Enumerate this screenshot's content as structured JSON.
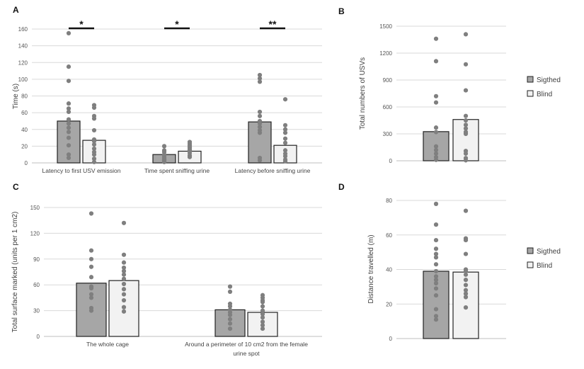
{
  "chart_data": [
    {
      "panel": "A",
      "type": "bar",
      "ylabel": "Time (s)",
      "ylim": [
        0,
        160
      ],
      "yticks": [
        0,
        20,
        40,
        60,
        80,
        100,
        120,
        140,
        160
      ],
      "grid": true,
      "categories": [
        "Latency to first USV emission",
        "Time spent sniffing urine",
        "Latency before sniffing urine"
      ],
      "series": [
        {
          "name": "Sigthed",
          "color": "#a6a6a6",
          "values": [
            50,
            10,
            49
          ],
          "points": [
            [
              155,
              115,
              98,
              71,
              65,
              61,
              52,
              47,
              42,
              37,
              30,
              21,
              10,
              6
            ],
            [
              20,
              15,
              13,
              10,
              8,
              6,
              5,
              4,
              3,
              2,
              1
            ],
            [
              105,
              101,
              97,
              61,
              56,
              50,
              47,
              43,
              39,
              36,
              6,
              3
            ]
          ]
        },
        {
          "name": "Blind",
          "color": "#f2f2f2",
          "values": [
            27,
            14,
            21
          ],
          "points": [
            [
              69,
              66,
              56,
              53,
              39,
              28,
              26,
              22,
              17,
              13,
              10,
              5,
              1
            ],
            [
              25,
              23,
              21,
              19,
              18,
              16,
              15,
              12,
              9,
              7
            ],
            [
              76,
              45,
              40,
              36,
              29,
              24,
              15,
              11,
              8,
              4,
              2
            ]
          ]
        }
      ],
      "significance": [
        "*",
        "*",
        "**"
      ]
    },
    {
      "panel": "B",
      "type": "bar",
      "ylabel": "Total numbers of USVs",
      "ylim": [
        0,
        1500
      ],
      "yticks": [
        0,
        300,
        600,
        900,
        1200,
        1500
      ],
      "grid": true,
      "categories": [
        ""
      ],
      "series": [
        {
          "name": "Sigthed",
          "color": "#a6a6a6",
          "values": [
            325
          ],
          "points": [
            [
              1360,
              1110,
              720,
              650,
              370,
              320,
              160,
              120,
              80,
              40,
              10
            ]
          ]
        },
        {
          "name": "Blind",
          "color": "#f2f2f2",
          "values": [
            460
          ],
          "points": [
            [
              1410,
              1075,
              785,
              500,
              450,
              400,
              360,
              320,
              300,
              110,
              80,
              30,
              5
            ]
          ]
        }
      ],
      "legend": [
        "Sigthed",
        "Blind"
      ]
    },
    {
      "panel": "C",
      "type": "bar",
      "ylabel": "Total surface marked (units per 1 cm2)",
      "ylim": [
        0,
        150
      ],
      "yticks": [
        0,
        30,
        60,
        90,
        120,
        150
      ],
      "grid": true,
      "categories": [
        "The whole cage",
        "Around a perimeter of 10 cm2 from the female urine spot"
      ],
      "series": [
        {
          "name": "Sigthed",
          "color": "#a6a6a6",
          "values": [
            62,
            31
          ],
          "points": [
            [
              143,
              100,
              90,
              81,
              69,
              58,
              56,
              49,
              45,
              33,
              30
            ],
            [
              58,
              52,
              38,
              35,
              31,
              28,
              25,
              20,
              15,
              9
            ]
          ]
        },
        {
          "name": "Blind",
          "color": "#f2f2f2",
          "values": [
            65,
            28
          ],
          "points": [
            [
              132,
              95,
              86,
              80,
              76,
              72,
              67,
              61,
              55,
              49,
              42,
              34,
              29
            ],
            [
              48,
              45,
              42,
              40,
              35,
              30,
              26,
              22,
              17,
              13,
              9
            ]
          ]
        }
      ]
    },
    {
      "panel": "D",
      "type": "bar",
      "ylabel": "Distance travelled (m)",
      "ylim": [
        0,
        80
      ],
      "yticks": [
        0,
        20,
        40,
        60,
        80
      ],
      "grid": true,
      "categories": [
        ""
      ],
      "series": [
        {
          "name": "Sigthed",
          "color": "#a6a6a6",
          "values": [
            39
          ],
          "points": [
            [
              78,
              66,
              57,
              52,
              49,
              47,
              43,
              39,
              36,
              34,
              32,
              29,
              25,
              17,
              13,
              11
            ]
          ]
        },
        {
          "name": "Blind",
          "color": "#f2f2f2",
          "values": [
            38.5
          ],
          "points": [
            [
              74,
              58,
              57,
              49,
              40,
              39,
              37,
              34,
              31,
              28,
              26,
              24,
              18
            ]
          ]
        }
      ],
      "legend": [
        "Sigthed",
        "Blind"
      ]
    }
  ]
}
